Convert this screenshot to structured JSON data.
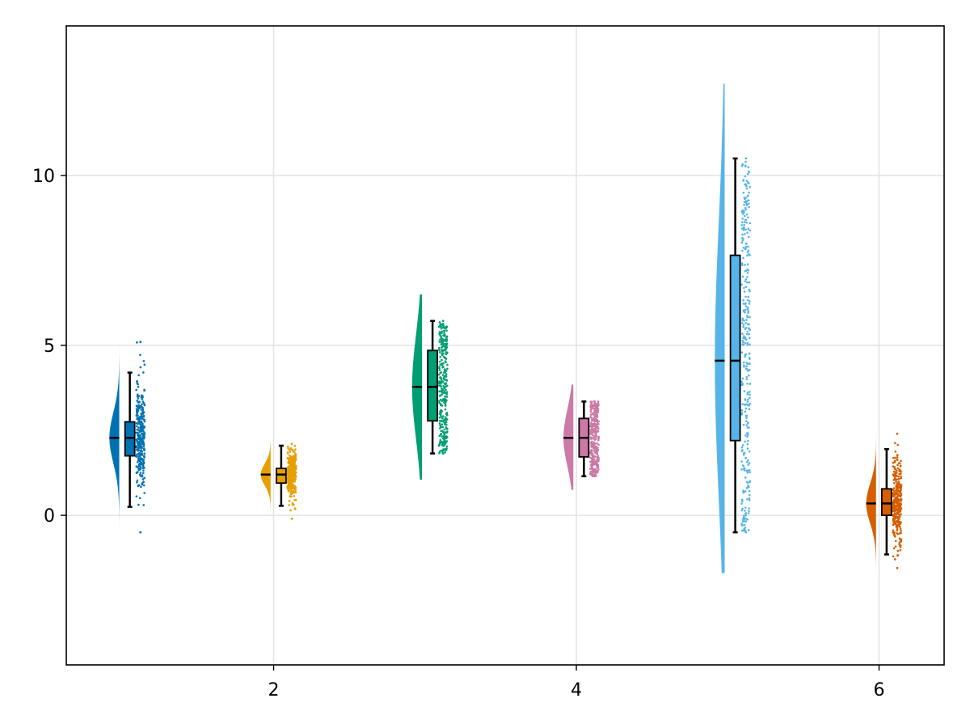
{
  "chart_data": {
    "type": "raincloud",
    "title": "",
    "xlabel": "",
    "ylabel": "",
    "xlim": [
      0.63,
      6.43
    ],
    "ylim": [
      -4.4,
      14.4
    ],
    "x_ticks": [
      2,
      4,
      6
    ],
    "y_ticks": [
      0,
      5,
      10
    ],
    "grid": true,
    "groups": [
      {
        "x": 1,
        "color": "#0072B2",
        "min": 0.25,
        "q1": 1.75,
        "median": 2.28,
        "q3": 2.75,
        "max": 4.2,
        "points_min": -0.5,
        "points_max": 5.1,
        "density_min": -0.9,
        "density_max": 5.4
      },
      {
        "x": 2,
        "color": "#E69F00",
        "min": 0.28,
        "q1": 0.95,
        "median": 1.2,
        "q3": 1.38,
        "max": 2.05,
        "points_min": -0.1,
        "points_max": 2.1,
        "density_min": -0.3,
        "density_max": 2.25
      },
      {
        "x": 3,
        "color": "#009E73",
        "min": 1.82,
        "q1": 2.78,
        "median": 3.78,
        "q3": 4.85,
        "max": 5.72,
        "points_min": 1.82,
        "points_max": 5.72,
        "density_min": 1.05,
        "density_max": 6.5
      },
      {
        "x": 4,
        "color": "#CC79A7",
        "min": 1.15,
        "q1": 1.72,
        "median": 2.28,
        "q3": 2.85,
        "max": 3.35,
        "points_min": 1.15,
        "points_max": 3.35,
        "density_min": 0.75,
        "density_max": 3.85
      },
      {
        "x": 5,
        "color": "#56B4E9",
        "min": -0.5,
        "q1": 2.2,
        "median": 4.55,
        "q3": 7.65,
        "max": 10.5,
        "points_min": -0.5,
        "points_max": 10.5,
        "density_min": -1.7,
        "density_max": 12.7
      },
      {
        "x": 6,
        "color": "#D55E00",
        "min": -1.15,
        "q1": 0.0,
        "median": 0.35,
        "q3": 0.78,
        "max": 1.95,
        "points_min": -1.55,
        "points_max": 2.4,
        "density_min": -1.8,
        "density_max": 2.65
      }
    ]
  }
}
